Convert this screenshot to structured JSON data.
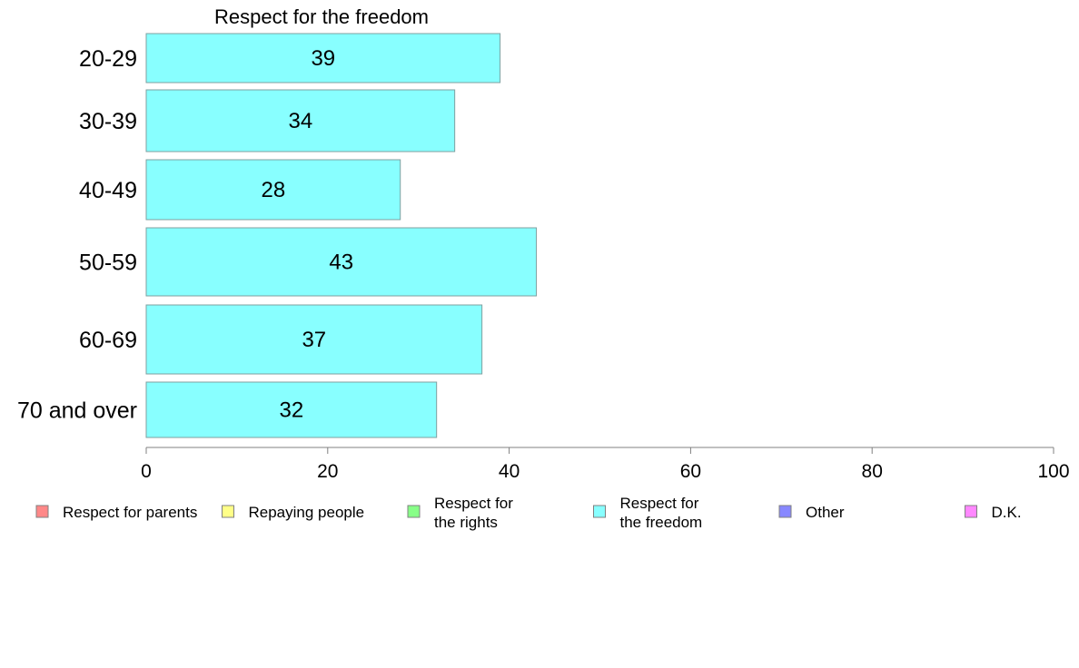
{
  "chart_data": {
    "type": "bar",
    "orientation": "horizontal",
    "title": "Respect for the freedom",
    "categories": [
      "20-29",
      "30-39",
      "40-49",
      "50-59",
      "60-69",
      "70 and over"
    ],
    "series": [
      {
        "name": "Respect for the freedom",
        "values": [
          39,
          34,
          28,
          43,
          37,
          32
        ],
        "color": "#88ffff"
      }
    ],
    "xlim": [
      0,
      100
    ],
    "xticks": [
      0,
      20,
      40,
      60,
      80,
      100
    ],
    "grid": false,
    "legend": {
      "placement": "bottom",
      "entries": [
        {
          "label": [
            "Respect for parents"
          ],
          "color": "#ff8888"
        },
        {
          "label": [
            "Repaying people"
          ],
          "color": "#ffff88"
        },
        {
          "label": [
            "Respect for",
            "the rights"
          ],
          "color": "#88ff88"
        },
        {
          "label": [
            "Respect for",
            "the freedom"
          ],
          "color": "#88ffff"
        },
        {
          "label": [
            "Other"
          ],
          "color": "#8888ff"
        },
        {
          "label": [
            "D.K."
          ],
          "color": "#ff88ff"
        }
      ]
    }
  }
}
